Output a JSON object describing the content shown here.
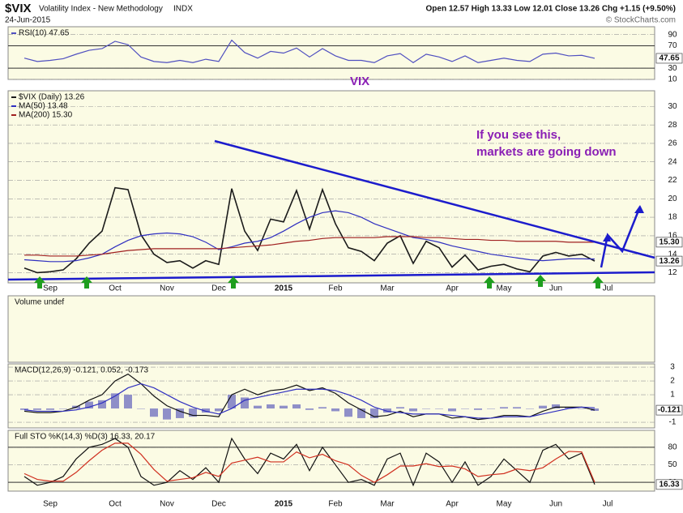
{
  "header": {
    "symbol": "$VIX",
    "name": "Volatility Index - New Methodology",
    "exchange": "INDX",
    "date": "24-Jun-2015",
    "quote": "Open 12.57  High 13.33  Low 12.01  Close 13.26  Chg +1.15 (+9.50%)",
    "credit": "© StockCharts.com"
  },
  "chart_data": [
    {
      "type": "line",
      "ylim": [
        10,
        104
      ],
      "yticks": [
        10,
        30,
        70,
        90
      ],
      "guides": [
        30,
        70
      ],
      "annotation": "VIX",
      "end_labels": [
        {
          "value": 47.65,
          "label": "47.65"
        }
      ],
      "series": [
        {
          "name": "RSI(10) 47.65",
          "color": "#5050c0",
          "values": [
            48,
            42,
            44,
            47,
            55,
            62,
            65,
            78,
            72,
            50,
            42,
            40,
            44,
            40,
            46,
            42,
            80,
            58,
            48,
            60,
            57,
            66,
            50,
            65,
            52,
            44,
            44,
            40,
            52,
            56,
            40,
            55,
            50,
            42,
            52,
            40,
            44,
            48,
            44,
            42,
            55,
            57,
            52,
            53,
            47.65,
            null,
            null,
            null
          ]
        }
      ]
    },
    {
      "type": "line",
      "categories": [
        null,
        null,
        "Sep",
        null,
        null,
        null,
        null,
        "Oct",
        null,
        null,
        null,
        "Nov",
        null,
        null,
        null,
        "Dec",
        null,
        null,
        null,
        null,
        "2015",
        null,
        null,
        null,
        "Feb",
        null,
        null,
        null,
        "Mar",
        null,
        null,
        null,
        null,
        "Apr",
        null,
        null,
        null,
        "May",
        null,
        null,
        null,
        "Jun",
        null,
        null,
        null,
        "Jul",
        null,
        null
      ],
      "ylim": [
        10.9,
        31.7
      ],
      "yticks": [
        12,
        14,
        16,
        18,
        20,
        22,
        24,
        26,
        28,
        30
      ],
      "annotations": [
        "If you see this,",
        "markets are going down"
      ],
      "end_labels": [
        {
          "value": 15.3,
          "label": "15.30"
        },
        {
          "value": 13.26,
          "label": "13.26"
        }
      ],
      "series": [
        {
          "name": "$VIX (Daily) 13.26",
          "color": "#1a1a1a",
          "values": [
            12.5,
            12.0,
            12.1,
            12.3,
            13.5,
            15.2,
            16.5,
            21.2,
            21.0,
            16.1,
            14.0,
            13.1,
            13.3,
            12.5,
            13.3,
            12.9,
            21.1,
            16.5,
            14.4,
            17.8,
            17.5,
            20.9,
            16.7,
            21.0,
            17.3,
            14.7,
            14.3,
            13.3,
            15.2,
            16.0,
            13.0,
            15.4,
            14.7,
            12.6,
            13.9,
            12.3,
            12.7,
            12.9,
            12.4,
            12.1,
            13.8,
            14.2,
            13.8,
            14.0,
            13.26,
            null,
            null,
            null
          ]
        },
        {
          "name": "MA(50) 13.48",
          "color": "#2f2fc0",
          "values": [
            13.4,
            13.3,
            13.2,
            13.2,
            13.3,
            13.6,
            14.0,
            14.8,
            15.5,
            16.0,
            16.2,
            16.3,
            16.2,
            15.9,
            15.3,
            14.5,
            14.8,
            15.2,
            15.4,
            15.8,
            16.5,
            17.3,
            18.0,
            18.5,
            18.7,
            18.5,
            18.0,
            17.3,
            16.8,
            16.3,
            15.8,
            15.6,
            15.3,
            14.9,
            14.6,
            14.3,
            14.0,
            13.8,
            13.6,
            13.4,
            13.3,
            13.4,
            13.5,
            13.5,
            13.48,
            null,
            null,
            null
          ]
        },
        {
          "name": "MA(200) 15.30",
          "color": "#a02020",
          "values": [
            13.9,
            13.9,
            13.8,
            13.8,
            13.8,
            13.9,
            14.0,
            14.2,
            14.4,
            14.5,
            14.6,
            14.6,
            14.6,
            14.6,
            14.6,
            14.6,
            14.7,
            14.8,
            14.9,
            15.0,
            15.2,
            15.4,
            15.5,
            15.7,
            15.8,
            15.8,
            15.8,
            15.8,
            15.9,
            15.9,
            15.9,
            15.8,
            15.8,
            15.7,
            15.6,
            15.6,
            15.5,
            15.5,
            15.4,
            15.4,
            15.4,
            15.4,
            15.3,
            15.3,
            15.3,
            null,
            null,
            null
          ]
        }
      ]
    },
    {
      "type": "empty",
      "title": "Volume undef"
    },
    {
      "type": "line",
      "title": "MACD(12,26,9) -0.121, 0.052, -0.173",
      "ylim": [
        -1.41,
        3.24
      ],
      "yticks": [
        -1,
        1,
        2,
        3
      ],
      "end_labels": [
        {
          "value": -0.121,
          "label": "-0.121"
        }
      ],
      "series": [
        {
          "style": "histogram",
          "color": "#8f8fc8",
          "values": [
            -0.1,
            -0.1,
            -0.1,
            0,
            0.2,
            0.5,
            0.6,
            1.1,
            1.0,
            0,
            -0.6,
            -0.8,
            -0.7,
            -0.6,
            -0.3,
            -0.2,
            1.0,
            0.8,
            0.2,
            0.3,
            0.2,
            0.3,
            -0.1,
            0.1,
            -0.2,
            -0.6,
            -0.7,
            -0.7,
            -0.3,
            0.1,
            -0.2,
            0,
            0,
            -0.2,
            0,
            -0.1,
            0,
            0.1,
            0.1,
            0,
            0.2,
            0.3,
            0.1,
            0,
            -0.173,
            null,
            null,
            null
          ]
        },
        {
          "color": "#111111",
          "values": [
            -0.2,
            -0.3,
            -0.3,
            -0.2,
            0.1,
            0.6,
            1.0,
            2.0,
            2.5,
            1.8,
            0.9,
            0.2,
            -0.2,
            -0.5,
            -0.5,
            -0.6,
            1.0,
            1.4,
            1.0,
            1.3,
            1.4,
            1.7,
            1.3,
            1.5,
            1.1,
            0.4,
            -0.1,
            -0.6,
            -0.5,
            -0.2,
            -0.6,
            -0.4,
            -0.4,
            -0.7,
            -0.6,
            -0.8,
            -0.7,
            -0.5,
            -0.5,
            -0.6,
            -0.2,
            0.1,
            0.1,
            0.1,
            -0.121,
            null,
            null,
            null
          ]
        },
        {
          "color": "#3030c0",
          "values": [
            -0.1,
            -0.2,
            -0.2,
            -0.2,
            -0.1,
            0.1,
            0.4,
            0.9,
            1.5,
            1.8,
            1.5,
            1.0,
            0.5,
            0.1,
            -0.2,
            -0.4,
            0.0,
            0.6,
            0.8,
            1.0,
            1.2,
            1.4,
            1.4,
            1.4,
            1.3,
            1.0,
            0.6,
            0.1,
            -0.2,
            -0.3,
            -0.4,
            -0.4,
            -0.4,
            -0.5,
            -0.6,
            -0.7,
            -0.7,
            -0.6,
            -0.6,
            -0.6,
            -0.4,
            -0.2,
            0.0,
            0.1,
            0.052,
            null,
            null,
            null
          ]
        }
      ]
    },
    {
      "type": "line",
      "title": "Full STO %K(14,3) %D(3) 16.33, 20.17",
      "ylim": [
        5,
        109
      ],
      "yticks": [
        20,
        50,
        80
      ],
      "guides": [
        20,
        80
      ],
      "end_labels": [
        {
          "value": 16.33,
          "label": "16.33"
        }
      ],
      "series": [
        {
          "color": "#111111",
          "values": [
            30,
            15,
            20,
            30,
            60,
            80,
            85,
            95,
            80,
            30,
            15,
            20,
            40,
            25,
            45,
            20,
            95,
            60,
            35,
            70,
            60,
            85,
            40,
            80,
            50,
            20,
            25,
            15,
            60,
            70,
            15,
            70,
            55,
            20,
            55,
            15,
            30,
            60,
            40,
            20,
            75,
            85,
            60,
            70,
            16.33,
            null,
            null,
            null
          ]
        },
        {
          "color": "#d03020",
          "values": [
            35,
            25,
            22,
            22,
            37,
            57,
            75,
            87,
            87,
            68,
            42,
            22,
            25,
            28,
            37,
            30,
            53,
            58,
            63,
            55,
            55,
            72,
            62,
            68,
            57,
            50,
            32,
            20,
            33,
            48,
            48,
            52,
            47,
            48,
            43,
            30,
            33,
            35,
            43,
            40,
            45,
            60,
            73,
            72,
            20.17,
            null,
            null,
            null
          ]
        }
      ]
    }
  ]
}
